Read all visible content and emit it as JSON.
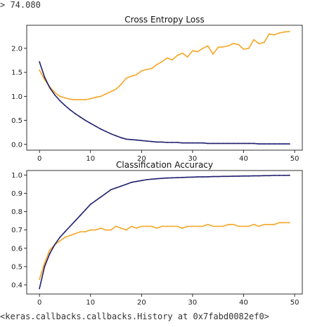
{
  "output": {
    "top_line": "> 74.080",
    "bottom_line": "<keras.callbacks.callbacks.History at 0x7fabd0082ef0>"
  },
  "colors": {
    "train": "#1f1f6e",
    "test": "#f5a623"
  },
  "chart_data": [
    {
      "type": "line",
      "title": "Cross Entropy Loss",
      "xlim": [
        -2.5,
        51.5
      ],
      "ylim": [
        -0.12,
        2.48
      ],
      "xticks": [
        0,
        10,
        20,
        30,
        40,
        50
      ],
      "xtick_labels": [
        "0",
        "10",
        "20",
        "30",
        "40",
        "50"
      ],
      "yticks": [
        0.0,
        0.5,
        1.0,
        1.5,
        2.0
      ],
      "ytick_labels": [
        "0.0",
        "0.5",
        "1.0",
        "1.5",
        "2.0"
      ],
      "x": [
        0,
        1,
        2,
        3,
        4,
        5,
        6,
        7,
        8,
        9,
        10,
        11,
        12,
        13,
        14,
        15,
        16,
        17,
        18,
        19,
        20,
        21,
        22,
        23,
        24,
        25,
        26,
        27,
        28,
        29,
        30,
        31,
        32,
        33,
        34,
        35,
        36,
        37,
        38,
        39,
        40,
        41,
        42,
        43,
        44,
        45,
        46,
        47,
        48,
        49
      ],
      "series": [
        {
          "color_key": "train",
          "values": [
            1.72,
            1.4,
            1.18,
            1.03,
            0.91,
            0.81,
            0.72,
            0.64,
            0.57,
            0.5,
            0.44,
            0.38,
            0.32,
            0.27,
            0.22,
            0.18,
            0.14,
            0.11,
            0.1,
            0.09,
            0.08,
            0.07,
            0.06,
            0.05,
            0.05,
            0.04,
            0.04,
            0.04,
            0.03,
            0.03,
            0.03,
            0.03,
            0.03,
            0.02,
            0.02,
            0.02,
            0.02,
            0.02,
            0.02,
            0.02,
            0.02,
            0.02,
            0.02,
            0.01,
            0.01,
            0.01,
            0.01,
            0.01,
            0.01,
            0.01
          ]
        },
        {
          "color_key": "test",
          "values": [
            1.55,
            1.35,
            1.2,
            1.08,
            1.0,
            0.97,
            0.94,
            0.93,
            0.93,
            0.93,
            0.95,
            0.98,
            1.0,
            1.05,
            1.1,
            1.15,
            1.25,
            1.38,
            1.42,
            1.45,
            1.53,
            1.56,
            1.58,
            1.66,
            1.72,
            1.8,
            1.76,
            1.85,
            1.9,
            1.82,
            1.95,
            1.93,
            2.0,
            2.05,
            1.88,
            2.02,
            2.03,
            2.05,
            2.1,
            2.08,
            1.98,
            2.0,
            2.18,
            2.1,
            2.12,
            2.3,
            2.28,
            2.32,
            2.34,
            2.35
          ]
        }
      ]
    },
    {
      "type": "line",
      "title": "Classification Accuracy",
      "xlim": [
        -2.5,
        51.5
      ],
      "ylim": [
        0.35,
        1.025
      ],
      "xticks": [
        0,
        10,
        20,
        30,
        40,
        50
      ],
      "xtick_labels": [
        "0",
        "10",
        "20",
        "30",
        "40",
        "50"
      ],
      "yticks": [
        0.4,
        0.5,
        0.6,
        0.7,
        0.8,
        0.9,
        1.0
      ],
      "ytick_labels": [
        "0.4",
        "0.5",
        "0.6",
        "0.7",
        "0.8",
        "0.9",
        "1.0"
      ],
      "x": [
        0,
        1,
        2,
        3,
        4,
        5,
        6,
        7,
        8,
        9,
        10,
        11,
        12,
        13,
        14,
        15,
        16,
        17,
        18,
        19,
        20,
        21,
        22,
        23,
        24,
        25,
        26,
        27,
        28,
        29,
        30,
        31,
        32,
        33,
        34,
        35,
        36,
        37,
        38,
        39,
        40,
        41,
        42,
        43,
        44,
        45,
        46,
        47,
        48,
        49
      ],
      "series": [
        {
          "color_key": "train",
          "values": [
            0.38,
            0.5,
            0.57,
            0.62,
            0.66,
            0.69,
            0.72,
            0.75,
            0.78,
            0.81,
            0.84,
            0.86,
            0.88,
            0.9,
            0.92,
            0.93,
            0.94,
            0.95,
            0.96,
            0.965,
            0.97,
            0.975,
            0.978,
            0.98,
            0.982,
            0.984,
            0.985,
            0.986,
            0.987,
            0.988,
            0.989,
            0.99,
            0.99,
            0.991,
            0.992,
            0.992,
            0.993,
            0.993,
            0.994,
            0.994,
            0.995,
            0.995,
            0.996,
            0.996,
            0.997,
            0.997,
            0.998,
            0.998,
            0.998,
            0.999
          ]
        },
        {
          "color_key": "test",
          "values": [
            0.43,
            0.52,
            0.59,
            0.62,
            0.64,
            0.66,
            0.67,
            0.68,
            0.69,
            0.69,
            0.7,
            0.7,
            0.71,
            0.7,
            0.7,
            0.72,
            0.71,
            0.7,
            0.72,
            0.71,
            0.72,
            0.72,
            0.72,
            0.71,
            0.72,
            0.72,
            0.72,
            0.72,
            0.71,
            0.72,
            0.72,
            0.72,
            0.72,
            0.73,
            0.72,
            0.72,
            0.72,
            0.73,
            0.73,
            0.72,
            0.72,
            0.72,
            0.73,
            0.72,
            0.73,
            0.73,
            0.73,
            0.74,
            0.74,
            0.74
          ]
        }
      ]
    }
  ]
}
